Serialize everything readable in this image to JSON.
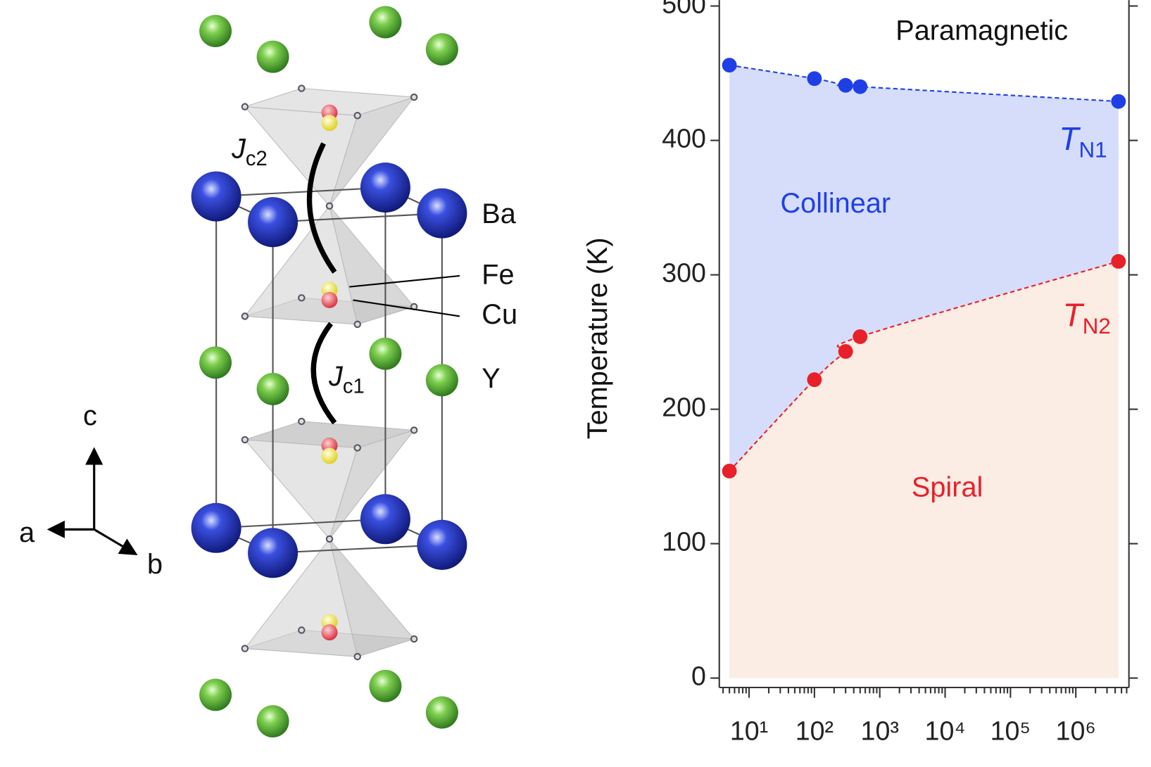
{
  "diagram": {
    "atoms": {
      "ba": "Ba",
      "fe": "Fe",
      "cu": "Cu",
      "y": "Y"
    },
    "couplings": {
      "jc2": {
        "symbol": "J",
        "subscript": "c2"
      },
      "jc1": {
        "symbol": "J",
        "subscript": "c1"
      }
    },
    "axes": {
      "a": "a",
      "b": "b",
      "c": "c"
    }
  },
  "chart_data": {
    "type": "scatter",
    "ylabel": "Temperature (K)",
    "x": [
      5,
      100,
      300,
      500,
      4500000
    ],
    "series": [
      {
        "name": {
          "symbol": "T",
          "subscript": "N1"
        },
        "color": "#1f3fe6",
        "values": [
          456,
          446,
          441,
          440,
          429
        ]
      },
      {
        "name": {
          "symbol": "T",
          "subscript": "N2"
        },
        "color": "#e8202a",
        "values": [
          154,
          222,
          243,
          254,
          310
        ]
      }
    ],
    "regions": {
      "paramagnetic": "Paramagnetic",
      "collinear": "Collinear",
      "spiral": "Spiral"
    },
    "region_colors": {
      "collinear": "#d5ddfb",
      "spiral": "#fbece4"
    },
    "xscale": "log",
    "xlim": [
      3.5,
      6500000
    ],
    "xticks": [
      {
        "value": 10,
        "label": "10¹"
      },
      {
        "value": 100,
        "label": "10²"
      },
      {
        "value": 1000,
        "label": "10³"
      },
      {
        "value": 10000,
        "label": "10⁴"
      },
      {
        "value": 100000,
        "label": "10⁵"
      },
      {
        "value": 1000000,
        "label": "10⁶"
      }
    ],
    "ylim": [
      -7,
      500
    ],
    "yticks": [
      0,
      100,
      200,
      300,
      400,
      500
    ]
  }
}
